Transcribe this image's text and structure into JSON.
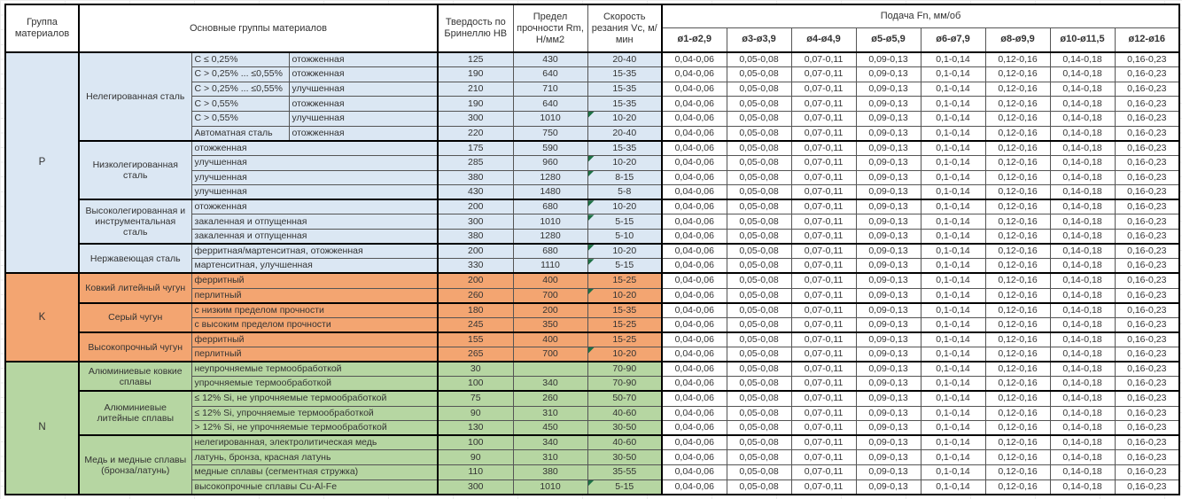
{
  "header": {
    "col_group": "Группа материалов",
    "col_materials": "Основные группы материалов",
    "col_hardness": "Твердость по Бринеллю HB",
    "col_strength": "Предел прочности Rm, Н/мм2",
    "col_speed": "Скорость резания Vc, м/мин",
    "col_feed": "Подача Fn, мм/об",
    "diameters": [
      "ø1-ø2,9",
      "ø3-ø3,9",
      "ø4-ø4,9",
      "ø5-ø5,9",
      "ø6-ø7,9",
      "ø8-ø9,9",
      "ø10-ø11,5",
      "ø12-ø16"
    ]
  },
  "feed_values": [
    "0,04-0,06",
    "0,05-0,08",
    "0,07-0,11",
    "0,09-0,13",
    "0,1-0,14",
    "0,12-0,16",
    "0,14-0,18",
    "0,16-0,23"
  ],
  "colors": {
    "group_p": "#dbe7f3",
    "group_k": "#f3a571",
    "group_n": "#b6d6a2",
    "indicator": "#1e7145"
  },
  "groups": [
    {
      "letter": "P",
      "color": "#dbe7f3",
      "subgroups": [
        {
          "name": "Нелегированная сталь",
          "rows": [
            {
              "detail": "С ≤ 0,25%",
              "state": "отожженная",
              "hb": "125",
              "rm": "430",
              "vc": "20-40",
              "tri": false
            },
            {
              "detail": "С > 0,25% ... ≤0,55%",
              "state": "отожженная",
              "hb": "190",
              "rm": "640",
              "vc": "15-35",
              "tri": false
            },
            {
              "detail": "С > 0,25% ... ≤0,55%",
              "state": "улучшенная",
              "hb": "210",
              "rm": "710",
              "vc": "15-35",
              "tri": false
            },
            {
              "detail": "С > 0,55%",
              "state": "отожженная",
              "hb": "190",
              "rm": "640",
              "vc": "15-35",
              "tri": false
            },
            {
              "detail": "С > 0,55%",
              "state": "улучшенная",
              "hb": "300",
              "rm": "1010",
              "vc": "10-20",
              "tri": true
            },
            {
              "detail": "Автоматная сталь",
              "state": "отожженная",
              "hb": "220",
              "rm": "750",
              "vc": "20-40",
              "tri": false
            }
          ]
        },
        {
          "name": "Низколегированная сталь",
          "rows": [
            {
              "detail": "отожженная",
              "state": null,
              "hb": "175",
              "rm": "590",
              "vc": "15-35",
              "tri": false
            },
            {
              "detail": "улучшенная",
              "state": null,
              "hb": "285",
              "rm": "960",
              "vc": "10-20",
              "tri": true
            },
            {
              "detail": "улучшенная",
              "state": null,
              "hb": "380",
              "rm": "1280",
              "vc": "8-15",
              "tri": true
            },
            {
              "detail": "улучшенная",
              "state": null,
              "hb": "430",
              "rm": "1480",
              "vc": "5-8",
              "tri": false
            }
          ]
        },
        {
          "name": "Высоколегированная и инструментальная сталь",
          "rows": [
            {
              "detail": "отожженная",
              "state": null,
              "hb": "200",
              "rm": "680",
              "vc": "10-20",
              "tri": true
            },
            {
              "detail": "закаленная и отпущенная",
              "state": null,
              "hb": "300",
              "rm": "1010",
              "vc": "5-15",
              "tri": true
            },
            {
              "detail": "закаленная и отпущенная",
              "state": null,
              "hb": "380",
              "rm": "1280",
              "vc": "5-10",
              "tri": false
            }
          ]
        },
        {
          "name": "Нержавеющая сталь",
          "rows": [
            {
              "detail": "ферритная/мартенситная, отожженная",
              "state": null,
              "hb": "200",
              "rm": "680",
              "vc": "10-20",
              "tri": true
            },
            {
              "detail": "мартенситная, улучшенная",
              "state": null,
              "hb": "330",
              "rm": "1110",
              "vc": "5-15",
              "tri": true
            }
          ]
        }
      ]
    },
    {
      "letter": "K",
      "color": "#f3a571",
      "subgroups": [
        {
          "name": "Ковкий литейный чугун",
          "rows": [
            {
              "detail": "ферритный",
              "state": null,
              "hb": "200",
              "rm": "400",
              "vc": "15-25",
              "tri": false
            },
            {
              "detail": "перлитный",
              "state": null,
              "hb": "260",
              "rm": "700",
              "vc": "10-20",
              "tri": true
            }
          ]
        },
        {
          "name": "Серый чугун",
          "rows": [
            {
              "detail": "с низким пределом прочности",
              "state": null,
              "hb": "180",
              "rm": "200",
              "vc": "15-35",
              "tri": false
            },
            {
              "detail": "с высоким пределом прочности",
              "state": null,
              "hb": "245",
              "rm": "350",
              "vc": "15-25",
              "tri": false
            }
          ]
        },
        {
          "name": "Высокопрочный чугун",
          "rows": [
            {
              "detail": "ферритный",
              "state": null,
              "hb": "155",
              "rm": "400",
              "vc": "15-25",
              "tri": false
            },
            {
              "detail": "перлитный",
              "state": null,
              "hb": "265",
              "rm": "700",
              "vc": "10-20",
              "tri": true
            }
          ]
        }
      ]
    },
    {
      "letter": "N",
      "color": "#b6d6a2",
      "subgroups": [
        {
          "name": "Алюминиевые ковкие сплавы",
          "rows": [
            {
              "detail": "неупрочняемые термообработкой",
              "state": null,
              "hb": "30",
              "rm": "",
              "vc": "70-90",
              "tri": false
            },
            {
              "detail": "упрочняемые термообработкой",
              "state": null,
              "hb": "100",
              "rm": "340",
              "vc": "70-90",
              "tri": false
            }
          ]
        },
        {
          "name": "Алюминиевые литейные сплавы",
          "rows": [
            {
              "detail": "≤ 12% Si, не упрочняемые термообработкой",
              "state": null,
              "hb": "75",
              "rm": "260",
              "vc": "50-70",
              "tri": false
            },
            {
              "detail": "≤ 12% Si, упрочняемые термообработкой",
              "state": null,
              "hb": "90",
              "rm": "310",
              "vc": "40-60",
              "tri": false
            },
            {
              "detail": "> 12% Si, не упрочняемые термообработкой",
              "state": null,
              "hb": "130",
              "rm": "450",
              "vc": "30-50",
              "tri": false
            }
          ]
        },
        {
          "name": "Медь и медные сплавы (бронза/латунь)",
          "rows": [
            {
              "detail": "нелегированная, электролитическая медь",
              "state": null,
              "hb": "100",
              "rm": "340",
              "vc": "40-60",
              "tri": false
            },
            {
              "detail": "латунь, бронза, красная латунь",
              "state": null,
              "hb": "90",
              "rm": "310",
              "vc": "30-50",
              "tri": false
            },
            {
              "detail": "медные сплавы (сегментная стружка)",
              "state": null,
              "hb": "110",
              "rm": "380",
              "vc": "35-55",
              "tri": false
            },
            {
              "detail": "высокопрочные сплавы Cu-Al-Fe",
              "state": null,
              "hb": "300",
              "rm": "1010",
              "vc": "5-15",
              "tri": true
            }
          ]
        }
      ]
    }
  ]
}
